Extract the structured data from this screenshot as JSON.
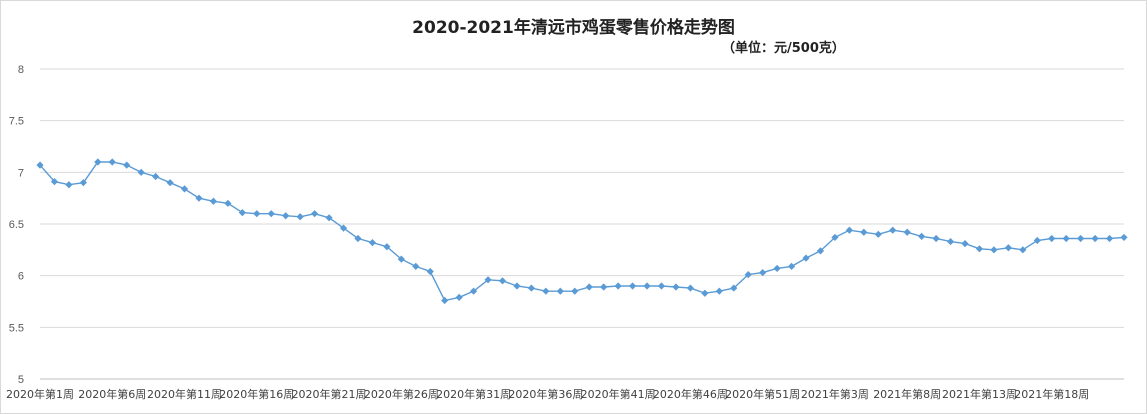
{
  "chart_data": {
    "type": "line",
    "title": "2020-2021年清远市鸡蛋零售价格走势图",
    "subtitle": "（单位：元/500克）",
    "xlabel": "",
    "ylabel": "",
    "ylim": [
      5,
      8
    ],
    "yticks": [
      "5",
      "5.5",
      "6",
      "6.5",
      "7",
      "7.5",
      "8"
    ],
    "grid": true,
    "series_color": "#5b9bd5",
    "x_tick_labels": [
      "2020年第1周",
      "2020年第6周",
      "2020年第11周",
      "2020年第16周",
      "2020年第21周",
      "2020年第26周",
      "2020年第31周",
      "2020年第36周",
      "2020年第41周",
      "2020年第46周",
      "2020年第51周",
      "2021年第3周",
      "2021年第8周",
      "2021年第13周",
      "2021年第18周"
    ],
    "values": [
      7.07,
      6.91,
      6.88,
      6.9,
      7.1,
      7.1,
      7.07,
      7.0,
      6.96,
      6.9,
      6.84,
      6.75,
      6.72,
      6.7,
      6.61,
      6.6,
      6.6,
      6.58,
      6.57,
      6.6,
      6.56,
      6.46,
      6.36,
      6.32,
      6.28,
      6.16,
      6.09,
      6.04,
      5.76,
      5.79,
      5.85,
      5.96,
      5.95,
      5.9,
      5.88,
      5.85,
      5.85,
      5.85,
      5.89,
      5.89,
      5.9,
      5.9,
      5.9,
      5.9,
      5.89,
      5.88,
      5.83,
      5.85,
      5.88,
      6.01,
      6.03,
      6.07,
      6.09,
      6.17,
      6.24,
      6.37,
      6.44,
      6.42,
      6.4,
      6.44,
      6.42,
      6.38,
      6.36,
      6.33,
      6.31,
      6.26,
      6.25,
      6.27,
      6.25,
      6.34,
      6.36,
      6.36,
      6.36,
      6.36,
      6.36,
      6.37
    ]
  }
}
